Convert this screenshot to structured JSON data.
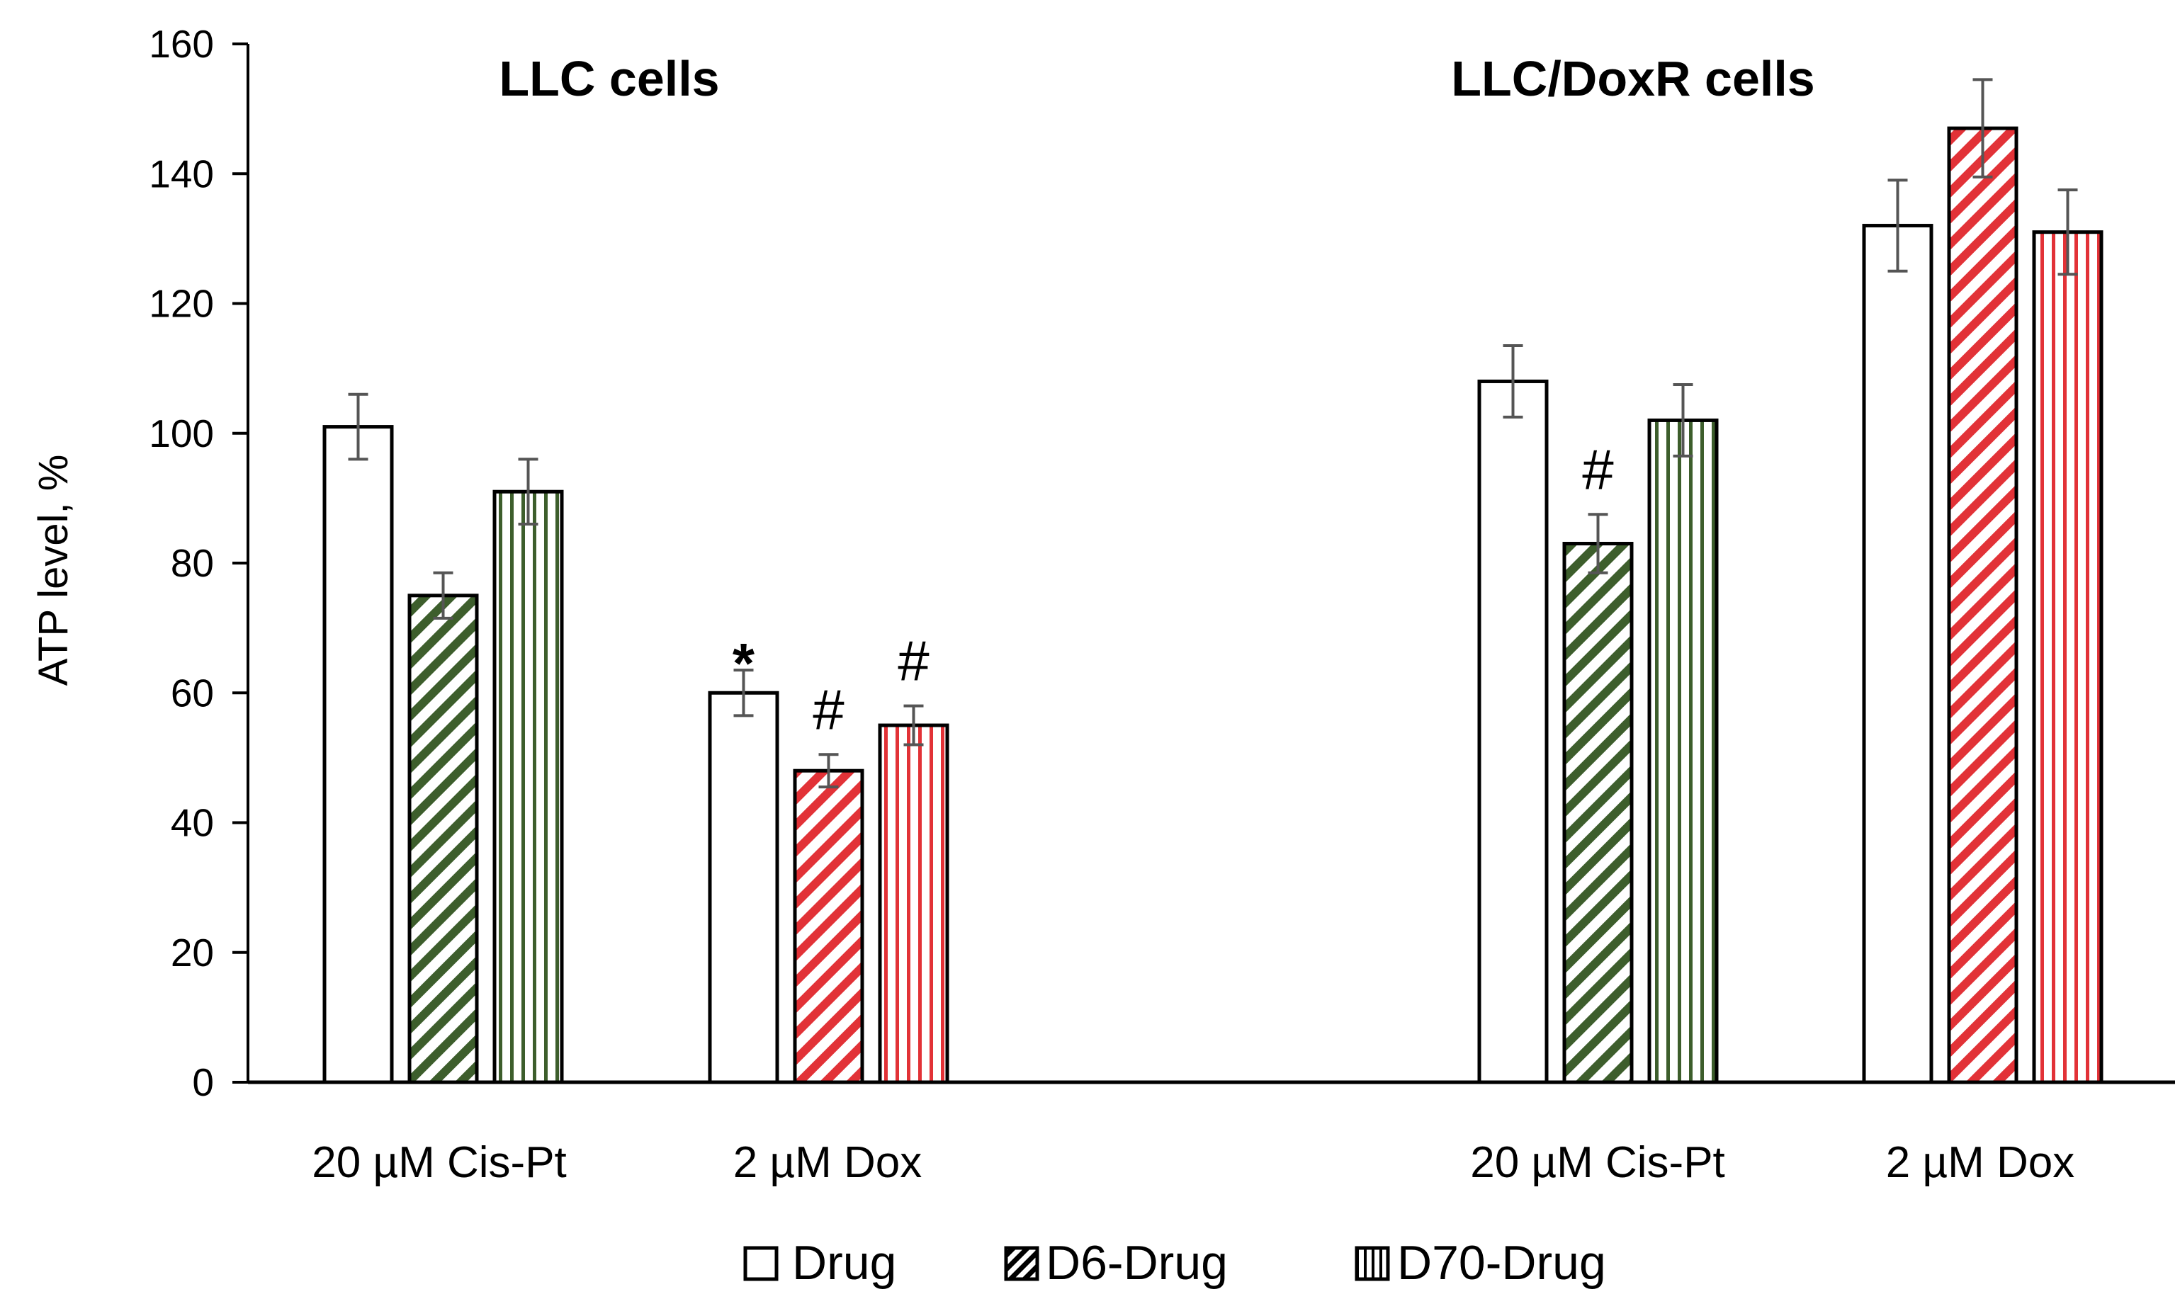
{
  "chart_data": {
    "type": "bar",
    "ylabel": "ATP level, %",
    "ylim": [
      0,
      160
    ],
    "yticks": [
      0,
      20,
      40,
      60,
      80,
      100,
      120,
      140,
      160
    ],
    "panels": [
      {
        "title": "LLC cells"
      },
      {
        "title": "LLC/DoxR cells"
      }
    ],
    "groups": [
      {
        "panel": 0,
        "label": "20  µM Cis-Pt",
        "bars": [
          {
            "series": "Drug",
            "value": 101,
            "error": 5,
            "annotation": ""
          },
          {
            "series": "D6-Drug",
            "value": 75,
            "error": 3.5,
            "annotation": ""
          },
          {
            "series": "D70-Drug",
            "value": 91,
            "error": 5,
            "annotation": ""
          }
        ]
      },
      {
        "panel": 0,
        "label": "2  µM Dox",
        "bars": [
          {
            "series": "Drug",
            "value": 60,
            "error": 3.5,
            "annotation": "*"
          },
          {
            "series": "D6-Drug",
            "value": 48,
            "error": 2.5,
            "annotation": "#"
          },
          {
            "series": "D70-Drug",
            "value": 55,
            "error": 3,
            "annotation": "#"
          }
        ]
      },
      {
        "panel": 1,
        "label": "20  µM Cis-Pt",
        "bars": [
          {
            "series": "Drug",
            "value": 108,
            "error": 5.5,
            "annotation": ""
          },
          {
            "series": "D6-Drug",
            "value": 83,
            "error": 4.5,
            "annotation": "#"
          },
          {
            "series": "D70-Drug",
            "value": 102,
            "error": 5.5,
            "annotation": ""
          }
        ]
      },
      {
        "panel": 1,
        "label": "2  µM Dox",
        "bars": [
          {
            "series": "Drug",
            "value": 132,
            "error": 7,
            "annotation": ""
          },
          {
            "series": "D6-Drug",
            "value": 147,
            "error": 7.5,
            "annotation": ""
          },
          {
            "series": "D70-Drug",
            "value": 131,
            "error": 6.5,
            "annotation": ""
          }
        ]
      }
    ],
    "legend": [
      {
        "name": "Drug",
        "pattern": "empty"
      },
      {
        "name": "D6-Drug",
        "pattern": "diagonal"
      },
      {
        "name": "D70-Drug",
        "pattern": "vertical"
      }
    ],
    "legend_position": "bottom"
  },
  "colors": {
    "green": "#3d5e2c",
    "red": "#e23237",
    "axis": "#000000",
    "errorbar": "#555555"
  }
}
